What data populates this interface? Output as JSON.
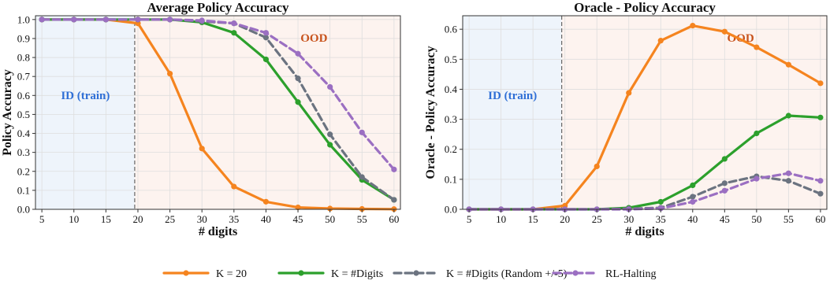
{
  "chart_data": [
    {
      "type": "line",
      "title": "Average Policy Accuracy",
      "xlabel": "# digits",
      "ylabel": "Policy Accuracy",
      "x": [
        5,
        10,
        15,
        20,
        25,
        30,
        35,
        40,
        45,
        50,
        55,
        60
      ],
      "xticks": [
        "5",
        "10",
        "15",
        "20",
        "25",
        "30",
        "35",
        "40",
        "45",
        "50",
        "55",
        "60"
      ],
      "xlim": [
        4,
        61
      ],
      "ylim": [
        0,
        1.02
      ],
      "yticks": [
        "0.0",
        "0.1",
        "0.2",
        "0.3",
        "0.4",
        "0.5",
        "0.6",
        "0.7",
        "0.8",
        "0.9",
        "1.0"
      ],
      "ytick_values": [
        0,
        0.1,
        0.2,
        0.3,
        0.4,
        0.5,
        0.6,
        0.7,
        0.8,
        0.9,
        1.0
      ],
      "grid": true,
      "regions": [
        {
          "label": "ID (train)",
          "from": 4,
          "to": 19.5,
          "color": "#eef4fb",
          "label_color": "#2f6fd6"
        },
        {
          "label": "OOD",
          "from": 19.5,
          "to": 61,
          "color": "#fdf3ef",
          "label_color": "#c8531c"
        }
      ],
      "series": [
        {
          "name": "K = 20",
          "color": "#f5841f",
          "dashed": false,
          "values": [
            1.0,
            1.0,
            1.0,
            0.98,
            0.715,
            0.32,
            0.12,
            0.04,
            0.01,
            0.004,
            0.002,
            0.001
          ]
        },
        {
          "name": "K = #Digits",
          "color": "#2ca02c",
          "dashed": false,
          "values": [
            1.0,
            1.0,
            1.0,
            1.0,
            1.0,
            0.985,
            0.93,
            0.79,
            0.565,
            0.34,
            0.155,
            0.05
          ]
        },
        {
          "name": "K = #Digits (Random +/-5)",
          "color": "#6b7380",
          "dashed": true,
          "values": [
            1.0,
            1.0,
            1.0,
            1.0,
            1.0,
            0.99,
            0.98,
            0.905,
            0.69,
            0.395,
            0.17,
            0.05
          ]
        },
        {
          "name": "RL-Halting",
          "color": "#9b6fc2",
          "dashed": true,
          "values": [
            1.0,
            1.0,
            1.0,
            1.0,
            1.0,
            0.995,
            0.98,
            0.93,
            0.82,
            0.645,
            0.405,
            0.21
          ]
        }
      ]
    },
    {
      "type": "line",
      "title": "Oracle - Policy Accuracy",
      "xlabel": "# digits",
      "ylabel": "Oracle - Policy Accuracy",
      "x": [
        5,
        10,
        15,
        20,
        25,
        30,
        35,
        40,
        45,
        50,
        55,
        60
      ],
      "xticks": [
        "5",
        "10",
        "15",
        "20",
        "25",
        "30",
        "35",
        "40",
        "45",
        "50",
        "55",
        "60"
      ],
      "xlim": [
        4,
        61
      ],
      "ylim": [
        0,
        0.645
      ],
      "yticks": [
        "0.0",
        "0.1",
        "0.2",
        "0.3",
        "0.4",
        "0.5",
        "0.6"
      ],
      "ytick_values": [
        0,
        0.1,
        0.2,
        0.3,
        0.4,
        0.5,
        0.6
      ],
      "grid": true,
      "regions": [
        {
          "label": "ID (train)",
          "from": 4,
          "to": 19.5,
          "color": "#eef4fb",
          "label_color": "#2f6fd6"
        },
        {
          "label": "OOD",
          "from": 19.5,
          "to": 61,
          "color": "#fdf3ef",
          "label_color": "#c8531c"
        }
      ],
      "series": [
        {
          "name": "K = 20",
          "color": "#f5841f",
          "dashed": false,
          "values": [
            0.0,
            0.0,
            0.0,
            0.012,
            0.143,
            0.388,
            0.562,
            0.612,
            0.592,
            0.54,
            0.482,
            0.42
          ]
        },
        {
          "name": "K = #Digits",
          "color": "#2ca02c",
          "dashed": false,
          "values": [
            0.0,
            0.0,
            0.0,
            0.0,
            0.0,
            0.005,
            0.025,
            0.08,
            0.168,
            0.253,
            0.312,
            0.306
          ]
        },
        {
          "name": "K = #Digits (Random +/-5)",
          "color": "#6b7380",
          "dashed": true,
          "values": [
            0.0,
            0.0,
            0.0,
            0.0,
            0.0,
            0.002,
            0.005,
            0.042,
            0.087,
            0.11,
            0.095,
            0.052
          ]
        },
        {
          "name": "RL-Halting",
          "color": "#9b6fc2",
          "dashed": true,
          "values": [
            0.0,
            0.0,
            0.0,
            0.0,
            0.0,
            0.0,
            0.003,
            0.025,
            0.062,
            0.102,
            0.12,
            0.095
          ]
        }
      ]
    }
  ],
  "legend": {
    "placement": "bottom-center",
    "items": [
      {
        "label": "K = 20",
        "color": "#f5841f",
        "dashed": false
      },
      {
        "label": "K = #Digits",
        "color": "#2ca02c",
        "dashed": false
      },
      {
        "label": "K = #Digits (Random +/-5)",
        "color": "#6b7380",
        "dashed": true
      },
      {
        "label": "RL-Halting",
        "color": "#9b6fc2",
        "dashed": true
      }
    ]
  }
}
